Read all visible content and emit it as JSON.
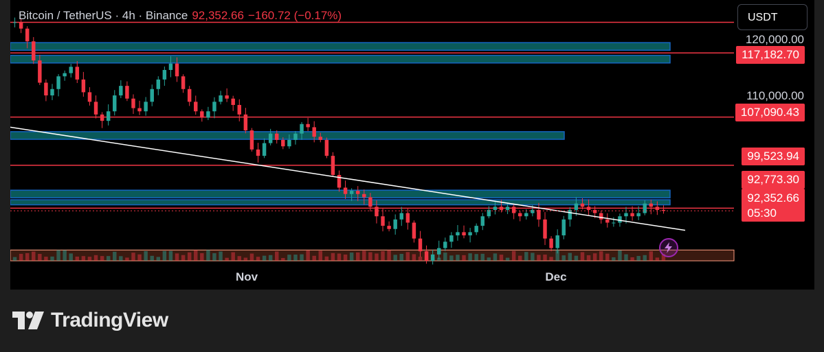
{
  "header": {
    "symbol_line": "Bitcoin / TetherUS · 4h · Binance",
    "last_price": "92,352.66",
    "change": "−160.72 (−0.17%)"
  },
  "currency_button": {
    "label": "USDT"
  },
  "colors": {
    "up": "#26a69a",
    "down": "#f23645",
    "resistance_line": "#f23645",
    "zone_fill": "#0a5a5a",
    "zone_border": "#1565c0",
    "trendline": "#ffffff",
    "demand_zone": "#3a1a10",
    "accent_purple": "#9c27b0",
    "background": "#000000"
  },
  "brand": {
    "name": "TradingView",
    "icon": "tradingview-logo-icon"
  },
  "icons": {
    "alert": "lightning-bolt-icon"
  },
  "chart_data": {
    "type": "candlestick",
    "title": "Bitcoin / TetherUS · 4h · Binance",
    "y_axis_ticks": [
      "120,000.00",
      "110,000.00"
    ],
    "y_range": [
      83000,
      125500
    ],
    "x_tick_labels": [
      "Nov",
      "Dec"
    ],
    "price_labels": [
      {
        "text": "117,182.70",
        "value": 117182.7
      },
      {
        "text": "107,090.43",
        "value": 107090.43
      },
      {
        "text": "99,523.94",
        "value": 99523.94
      },
      {
        "text": "92,773.30",
        "value": 92773.3
      },
      {
        "text": "92,352.66",
        "value": 92352.66,
        "countdown": "05:30",
        "current": true
      }
    ],
    "horizontal_lines": [
      122000,
      117182.7,
      107090.43,
      99523.94,
      92773.3
    ],
    "zones": [
      {
        "kind": "supply",
        "from": 117600,
        "to": 118800,
        "end": "Dec"
      },
      {
        "kind": "supply",
        "from": 115600,
        "to": 116800,
        "end": "Dec"
      },
      {
        "kind": "supply",
        "from": 103600,
        "to": 104800,
        "end": "Dec"
      },
      {
        "kind": "supply",
        "from": 94400,
        "to": 95600,
        "end": "Dec"
      },
      {
        "kind": "supply",
        "from": 93300,
        "to": 94100,
        "end": "Dec"
      },
      {
        "kind": "demand",
        "from": 84500,
        "to": 86200,
        "end": "Dec"
      }
    ],
    "trendline": {
      "from": 105500,
      "to": 89300
    },
    "closes": [
      122000,
      121000,
      119000,
      116000,
      112500,
      110500,
      111500,
      113500,
      114000,
      115000,
      113000,
      111000,
      109500,
      107500,
      106500,
      108000,
      110500,
      112000,
      110000,
      108500,
      108000,
      109500,
      111500,
      113000,
      114500,
      115500,
      113500,
      111500,
      109500,
      108000,
      107000,
      108000,
      109500,
      110500,
      110000,
      109000,
      107500,
      105000,
      102000,
      101000,
      103000,
      104500,
      103500,
      102500,
      103500,
      104500,
      106000,
      105500,
      104000,
      103500,
      101000,
      98000,
      96000,
      95000,
      95500,
      95000,
      94500,
      93000,
      91500,
      90000,
      89500,
      91000,
      92000,
      90500,
      88000,
      86000,
      84500,
      85500,
      86500,
      87500,
      88500,
      89000,
      88500,
      89000,
      90000,
      91500,
      92500,
      93000,
      92500,
      93000,
      92000,
      91500,
      92000,
      92500,
      91000,
      88000,
      86500,
      88500,
      91000,
      92500,
      93500,
      93000,
      92500,
      92000,
      91000,
      90500,
      90500,
      91500,
      92000,
      91500,
      92000,
      93500,
      93000,
      92500,
      92352.66
    ],
    "series": [
      {
        "name": "BTCUSDT"
      }
    ]
  }
}
